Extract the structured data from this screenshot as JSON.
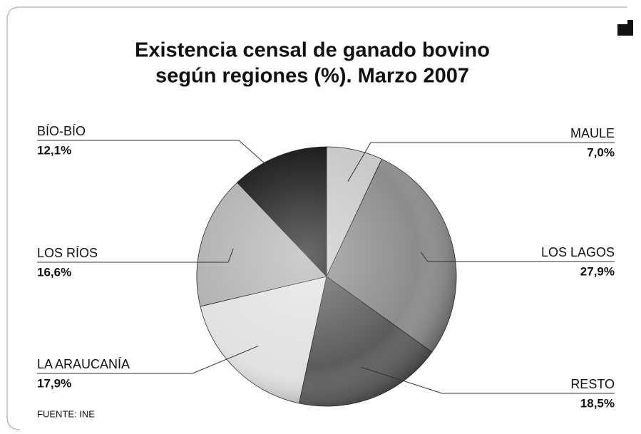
{
  "chart_data": {
    "type": "pie",
    "title": [
      "Existencia censal de ganado bovino",
      "según regiones (%).  Marzo 2007"
    ],
    "categories": [
      "MAULE",
      "LOS LAGOS",
      "RESTO",
      "LA ARAUCANÍA",
      "LOS RÍOS",
      "BÍO-BÍO"
    ],
    "values": [
      7.0,
      27.9,
      18.5,
      17.9,
      16.6,
      12.1
    ],
    "value_labels": [
      "7,0%",
      "27,9%",
      "18,5%",
      "17,9%",
      "16,6%",
      "12,1%"
    ],
    "colors": [
      "#c9c9c9",
      "#8c8c8c",
      "#5c5c5c",
      "#e2e2e2",
      "#b3b3b3",
      "#1c1c1c"
    ],
    "note": "FUENTE: INE"
  }
}
